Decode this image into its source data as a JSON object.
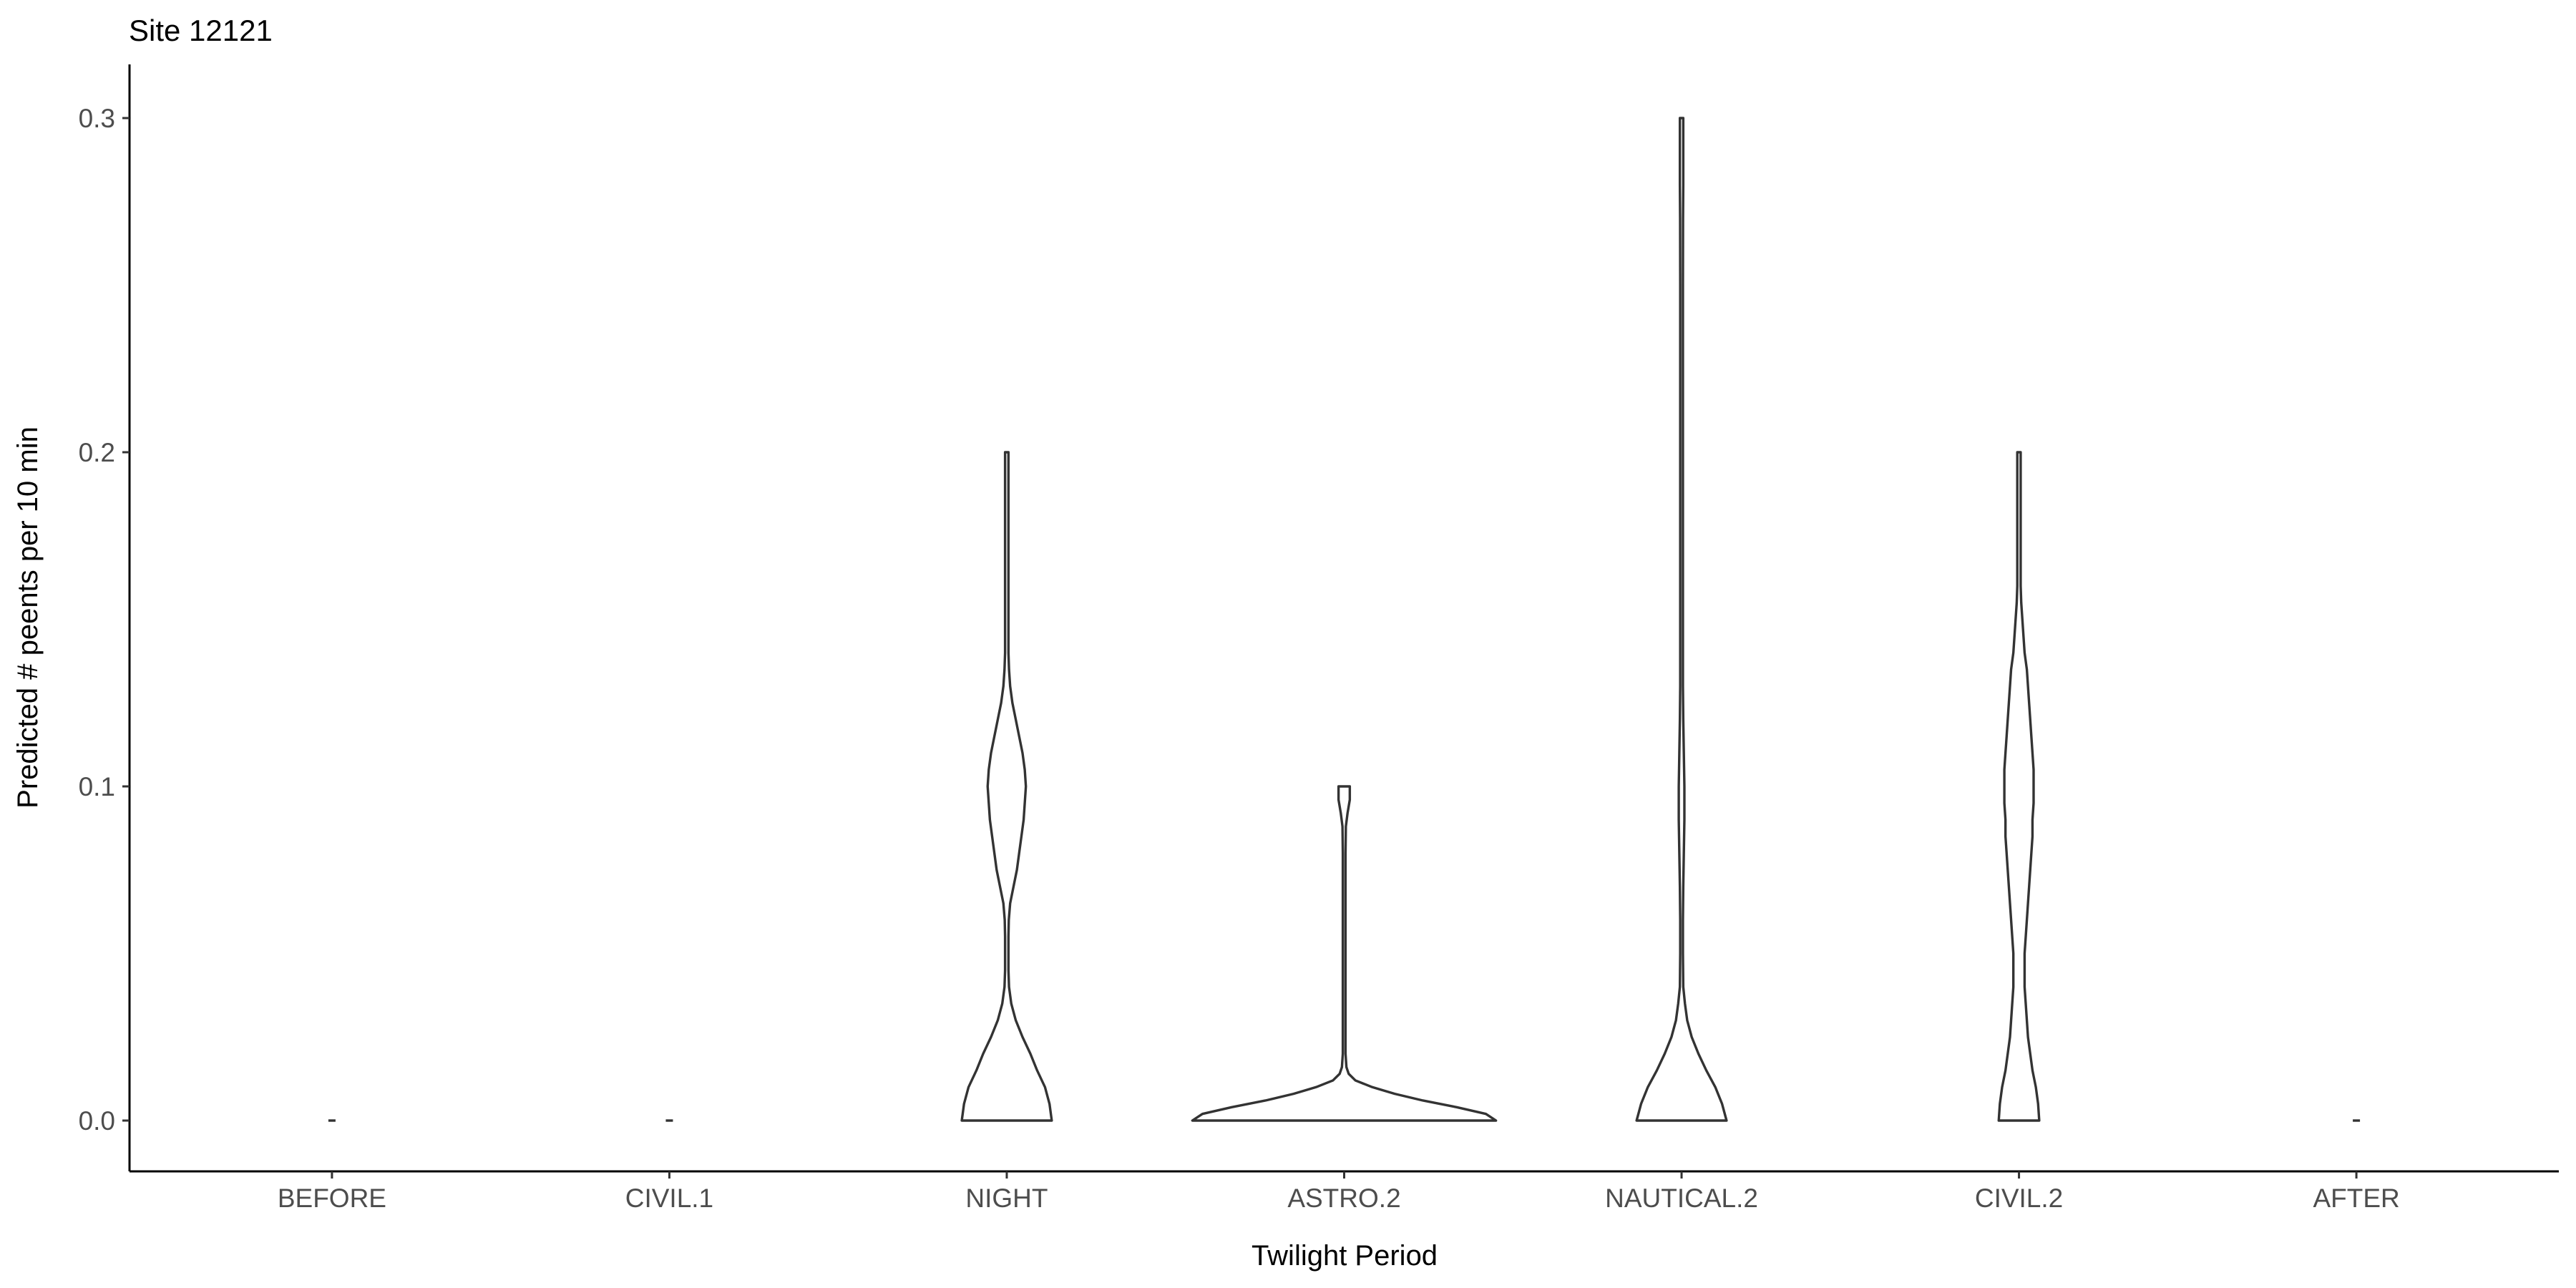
{
  "chart_data": {
    "type": "violin",
    "title": "Site 12121",
    "xlabel": "Twilight Period",
    "ylabel": "Predicted # peents per 10 min",
    "ylim": [
      -0.015,
      0.315
    ],
    "yticks": [
      0.0,
      0.1,
      0.2,
      0.3
    ],
    "ytick_labels": [
      "0.0",
      "0.1",
      "0.2",
      "0.3"
    ],
    "categories": [
      "BEFORE",
      "CIVIL.1",
      "NIGHT",
      "ASTRO.2",
      "NAUTICAL.2",
      "CIVIL.2",
      "AFTER"
    ],
    "grid": false,
    "legend": "none",
    "violins": [
      {
        "category": "BEFORE",
        "profile": [
          [
            0,
            0
          ],
          [
            0,
            0
          ]
        ]
      },
      {
        "category": "CIVIL.1",
        "profile": [
          [
            0,
            0
          ],
          [
            0,
            0
          ]
        ]
      },
      {
        "category": "NIGHT",
        "profile": [
          [
            0.0,
            0.04
          ],
          [
            0.005,
            0.038
          ],
          [
            0.01,
            0.034
          ],
          [
            0.015,
            0.027
          ],
          [
            0.02,
            0.021
          ],
          [
            0.025,
            0.014
          ],
          [
            0.03,
            0.008
          ],
          [
            0.035,
            0.004
          ],
          [
            0.04,
            0.002
          ],
          [
            0.045,
            0.0015
          ],
          [
            0.05,
            0.0015
          ],
          [
            0.055,
            0.0015
          ],
          [
            0.06,
            0.0018
          ],
          [
            0.065,
            0.003
          ],
          [
            0.07,
            0.006
          ],
          [
            0.075,
            0.009
          ],
          [
            0.08,
            0.011
          ],
          [
            0.085,
            0.013
          ],
          [
            0.09,
            0.015
          ],
          [
            0.095,
            0.016
          ],
          [
            0.1,
            0.017
          ],
          [
            0.105,
            0.016
          ],
          [
            0.11,
            0.014
          ],
          [
            0.115,
            0.011
          ],
          [
            0.12,
            0.008
          ],
          [
            0.125,
            0.005
          ],
          [
            0.13,
            0.003
          ],
          [
            0.135,
            0.002
          ],
          [
            0.14,
            0.0015
          ],
          [
            0.15,
            0.0015
          ],
          [
            0.16,
            0.0015
          ],
          [
            0.17,
            0.0015
          ],
          [
            0.18,
            0.0015
          ],
          [
            0.19,
            0.0015
          ],
          [
            0.2,
            0.0015
          ]
        ]
      },
      {
        "category": "ASTRO.2",
        "profile": [
          [
            0.0,
            0.135
          ],
          [
            0.002,
            0.126
          ],
          [
            0.004,
            0.1
          ],
          [
            0.006,
            0.07
          ],
          [
            0.008,
            0.045
          ],
          [
            0.01,
            0.025
          ],
          [
            0.012,
            0.01
          ],
          [
            0.014,
            0.004
          ],
          [
            0.016,
            0.002
          ],
          [
            0.02,
            0.0012
          ],
          [
            0.03,
            0.0012
          ],
          [
            0.04,
            0.0012
          ],
          [
            0.05,
            0.0012
          ],
          [
            0.06,
            0.0012
          ],
          [
            0.07,
            0.0012
          ],
          [
            0.08,
            0.0012
          ],
          [
            0.088,
            0.0015
          ],
          [
            0.092,
            0.003
          ],
          [
            0.096,
            0.005
          ],
          [
            0.1,
            0.005
          ]
        ]
      },
      {
        "category": "NAUTICAL.2",
        "profile": [
          [
            0.0,
            0.04
          ],
          [
            0.005,
            0.036
          ],
          [
            0.01,
            0.03
          ],
          [
            0.015,
            0.022
          ],
          [
            0.02,
            0.015
          ],
          [
            0.025,
            0.009
          ],
          [
            0.03,
            0.005
          ],
          [
            0.035,
            0.003
          ],
          [
            0.04,
            0.0015
          ],
          [
            0.05,
            0.0012
          ],
          [
            0.06,
            0.0012
          ],
          [
            0.07,
            0.0015
          ],
          [
            0.08,
            0.002
          ],
          [
            0.09,
            0.0025
          ],
          [
            0.1,
            0.0025
          ],
          [
            0.11,
            0.002
          ],
          [
            0.12,
            0.0015
          ],
          [
            0.13,
            0.0012
          ],
          [
            0.15,
            0.0012
          ],
          [
            0.2,
            0.0012
          ],
          [
            0.25,
            0.0012
          ],
          [
            0.27,
            0.0013
          ],
          [
            0.28,
            0.0015
          ],
          [
            0.29,
            0.0015
          ],
          [
            0.3,
            0.0015
          ]
        ]
      },
      {
        "category": "CIVIL.2",
        "profile": [
          [
            0.0,
            0.018
          ],
          [
            0.005,
            0.017
          ],
          [
            0.01,
            0.015
          ],
          [
            0.015,
            0.012
          ],
          [
            0.02,
            0.01
          ],
          [
            0.025,
            0.008
          ],
          [
            0.03,
            0.007
          ],
          [
            0.035,
            0.006
          ],
          [
            0.04,
            0.005
          ],
          [
            0.045,
            0.005
          ],
          [
            0.05,
            0.005
          ],
          [
            0.055,
            0.006
          ],
          [
            0.06,
            0.007
          ],
          [
            0.065,
            0.008
          ],
          [
            0.07,
            0.009
          ],
          [
            0.075,
            0.01
          ],
          [
            0.08,
            0.011
          ],
          [
            0.085,
            0.012
          ],
          [
            0.09,
            0.012
          ],
          [
            0.095,
            0.013
          ],
          [
            0.1,
            0.013
          ],
          [
            0.105,
            0.013
          ],
          [
            0.11,
            0.012
          ],
          [
            0.115,
            0.011
          ],
          [
            0.12,
            0.01
          ],
          [
            0.125,
            0.009
          ],
          [
            0.13,
            0.008
          ],
          [
            0.135,
            0.007
          ],
          [
            0.14,
            0.005
          ],
          [
            0.145,
            0.004
          ],
          [
            0.15,
            0.003
          ],
          [
            0.155,
            0.002
          ],
          [
            0.16,
            0.0015
          ],
          [
            0.17,
            0.0015
          ],
          [
            0.18,
            0.0015
          ],
          [
            0.19,
            0.0015
          ],
          [
            0.2,
            0.0015
          ]
        ]
      },
      {
        "category": "AFTER",
        "profile": [
          [
            0,
            0
          ],
          [
            0,
            0
          ]
        ]
      }
    ]
  }
}
